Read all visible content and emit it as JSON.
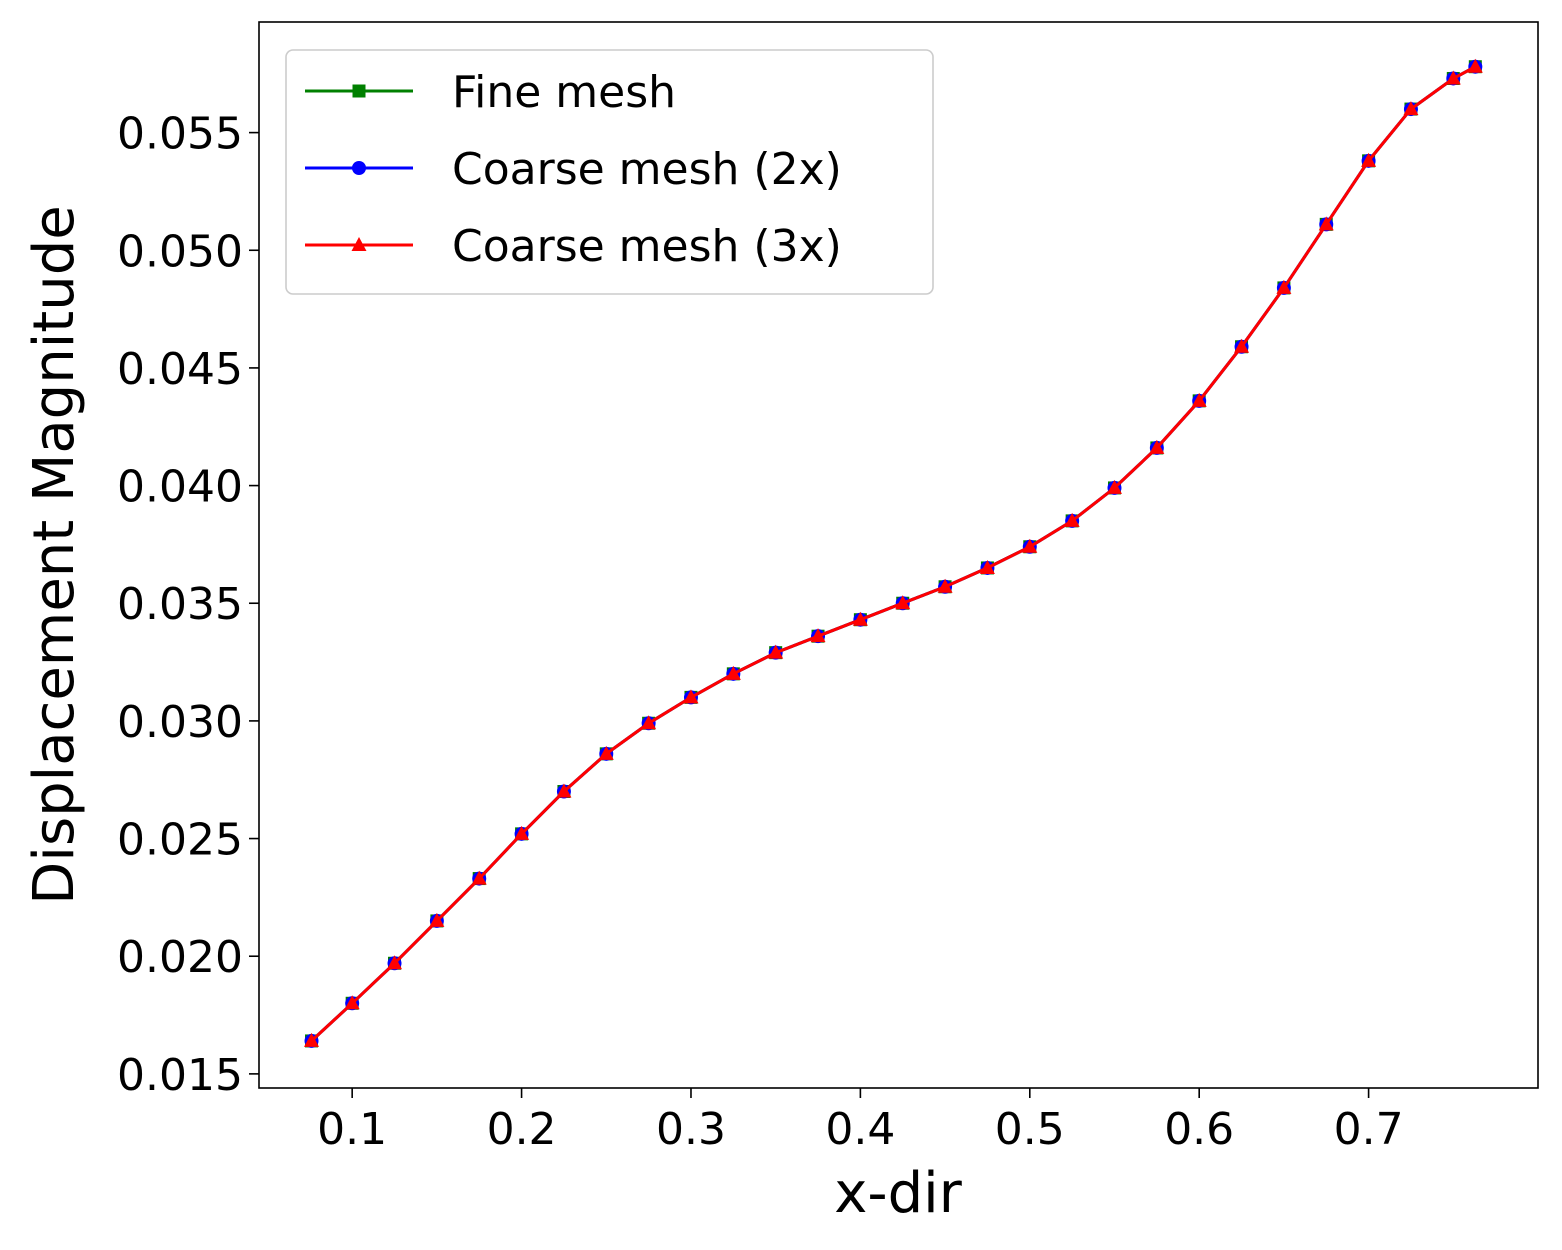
{
  "chart_data": {
    "type": "line",
    "title": "",
    "xlabel": "x-dir",
    "ylabel": "Displacement Magnitude",
    "xlim": [
      0.045,
      0.8
    ],
    "ylim": [
      0.0144,
      0.0597
    ],
    "xticks": [
      0.1,
      0.2,
      0.3,
      0.4,
      0.5,
      0.6,
      0.7
    ],
    "xtick_labels": [
      "0.1",
      "0.2",
      "0.3",
      "0.4",
      "0.5",
      "0.6",
      "0.7"
    ],
    "yticks": [
      0.015,
      0.02,
      0.025,
      0.03,
      0.035,
      0.04,
      0.045,
      0.05,
      0.055
    ],
    "ytick_labels": [
      "0.015",
      "0.020",
      "0.025",
      "0.030",
      "0.035",
      "0.040",
      "0.045",
      "0.050",
      "0.055"
    ],
    "grid": false,
    "legend_position": "top-left",
    "series": [
      {
        "name": "Fine mesh",
        "color": "#008000",
        "marker": "square",
        "x": [
          0.076,
          0.1,
          0.125,
          0.15,
          0.175,
          0.2,
          0.225,
          0.25,
          0.275,
          0.3,
          0.325,
          0.35,
          0.375,
          0.4,
          0.425,
          0.45,
          0.475,
          0.5,
          0.525,
          0.55,
          0.575,
          0.6,
          0.625,
          0.65,
          0.675,
          0.7,
          0.725,
          0.75,
          0.763
        ],
        "y": [
          0.0164,
          0.018,
          0.0197,
          0.0215,
          0.0233,
          0.0252,
          0.027,
          0.0286,
          0.0299,
          0.031,
          0.032,
          0.0329,
          0.0336,
          0.0343,
          0.035,
          0.0357,
          0.0365,
          0.0374,
          0.0385,
          0.0399,
          0.0416,
          0.0436,
          0.0459,
          0.0484,
          0.0511,
          0.0538,
          0.056,
          0.0573,
          0.0578
        ]
      },
      {
        "name": "Coarse mesh (2x)",
        "color": "#0000ff",
        "marker": "circle",
        "x": [
          0.076,
          0.1,
          0.125,
          0.15,
          0.175,
          0.2,
          0.225,
          0.25,
          0.275,
          0.3,
          0.325,
          0.35,
          0.375,
          0.4,
          0.425,
          0.45,
          0.475,
          0.5,
          0.525,
          0.55,
          0.575,
          0.6,
          0.625,
          0.65,
          0.675,
          0.7,
          0.725,
          0.75,
          0.763
        ],
        "y": [
          0.0164,
          0.018,
          0.0197,
          0.0215,
          0.0233,
          0.0252,
          0.027,
          0.0286,
          0.0299,
          0.031,
          0.032,
          0.0329,
          0.0336,
          0.0343,
          0.035,
          0.0357,
          0.0365,
          0.0374,
          0.0385,
          0.0399,
          0.0416,
          0.0436,
          0.0459,
          0.0484,
          0.0511,
          0.0538,
          0.056,
          0.0573,
          0.0578
        ]
      },
      {
        "name": "Coarse mesh (3x)",
        "color": "#ff0000",
        "marker": "triangle",
        "x": [
          0.076,
          0.1,
          0.125,
          0.15,
          0.175,
          0.2,
          0.225,
          0.25,
          0.275,
          0.3,
          0.325,
          0.35,
          0.375,
          0.4,
          0.425,
          0.45,
          0.475,
          0.5,
          0.525,
          0.55,
          0.575,
          0.6,
          0.625,
          0.65,
          0.675,
          0.7,
          0.725,
          0.75,
          0.763
        ],
        "y": [
          0.0164,
          0.018,
          0.0197,
          0.0215,
          0.0233,
          0.0252,
          0.027,
          0.0286,
          0.0299,
          0.031,
          0.032,
          0.0329,
          0.0336,
          0.0343,
          0.035,
          0.0357,
          0.0365,
          0.0374,
          0.0385,
          0.0399,
          0.0416,
          0.0436,
          0.0459,
          0.0484,
          0.0511,
          0.0538,
          0.056,
          0.0573,
          0.0578
        ]
      }
    ]
  }
}
